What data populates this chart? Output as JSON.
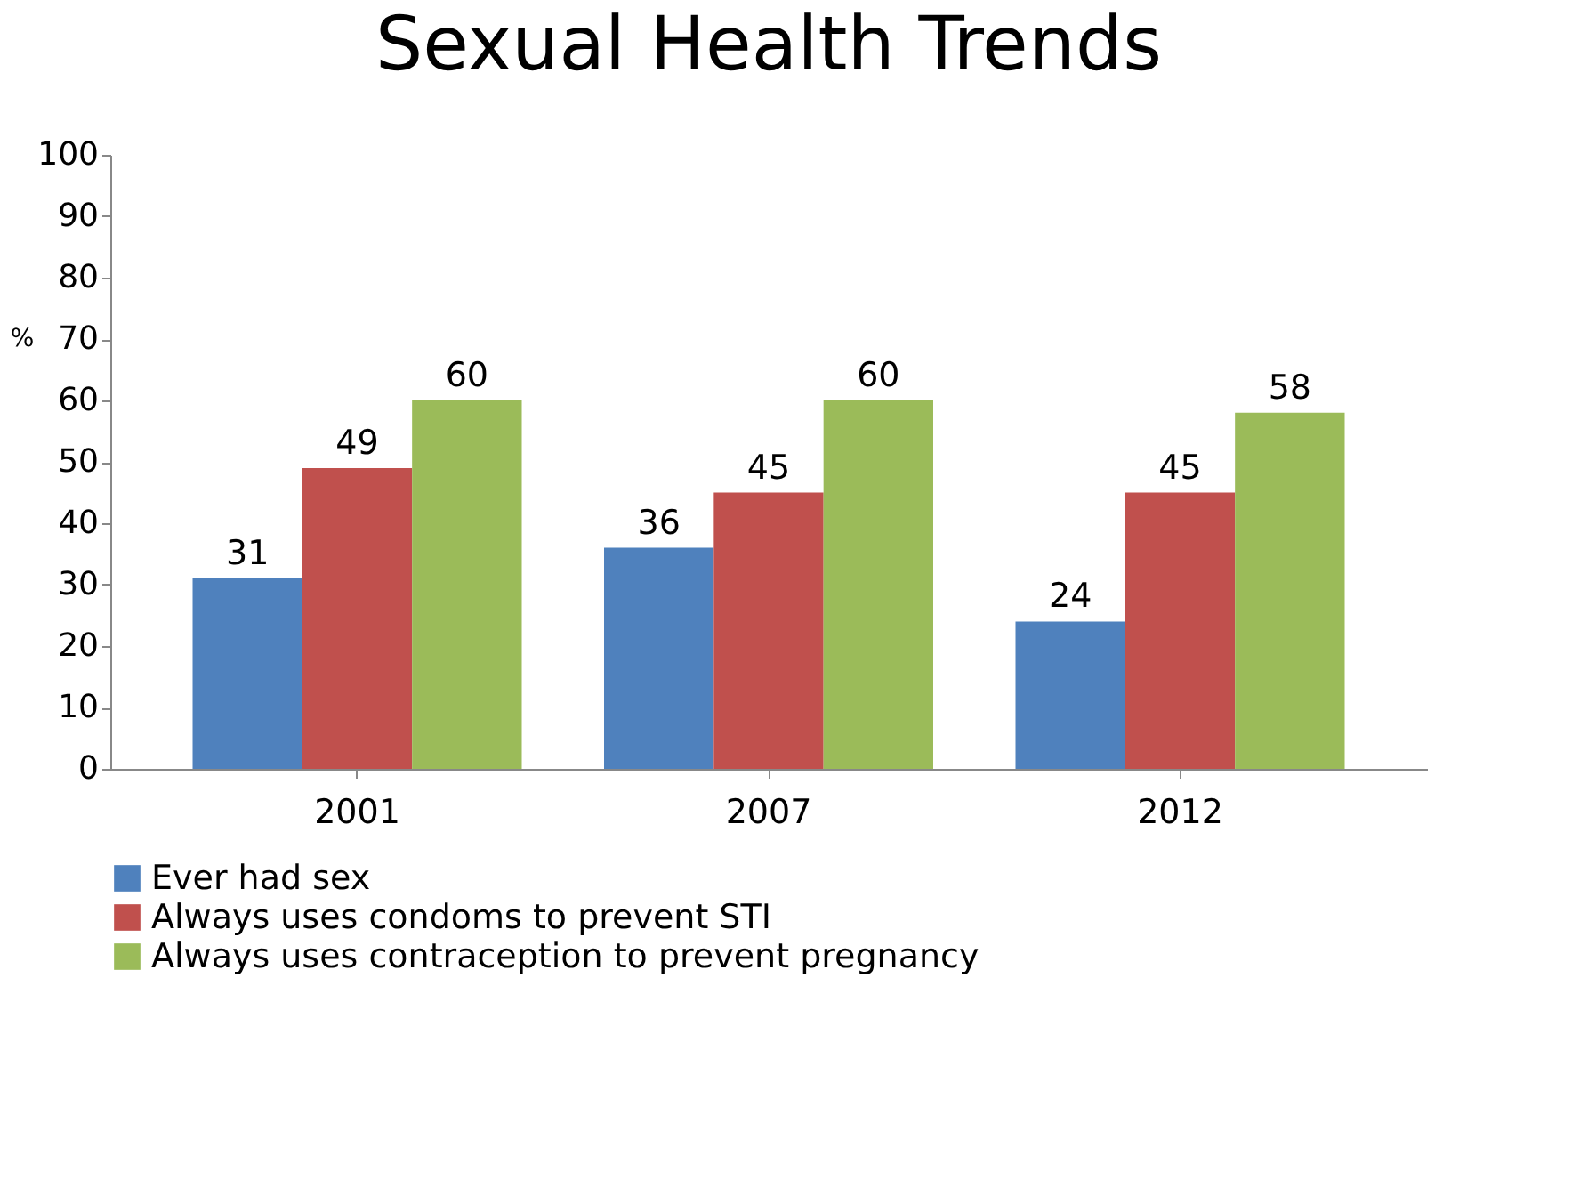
{
  "chart_data": {
    "type": "bar",
    "title": "Sexual Health Trends",
    "ylabel": "%",
    "categories": [
      "2001",
      "2007",
      "2012"
    ],
    "series": [
      {
        "name": "Ever had sex",
        "color": "#4f81bd",
        "values": [
          31,
          36,
          24
        ]
      },
      {
        "name": "Always uses condoms to prevent STI",
        "color": "#c0504d",
        "values": [
          49,
          45,
          45
        ]
      },
      {
        "name": "Always uses contraception to prevent pregnancy",
        "color": "#9bbb59",
        "values": [
          60,
          60,
          58
        ]
      }
    ],
    "ylim": [
      0,
      100
    ],
    "yticks": [
      0,
      10,
      20,
      30,
      40,
      50,
      60,
      70,
      80,
      90,
      100
    ],
    "grid": false,
    "legend": "bottom",
    "data_labels": true
  }
}
